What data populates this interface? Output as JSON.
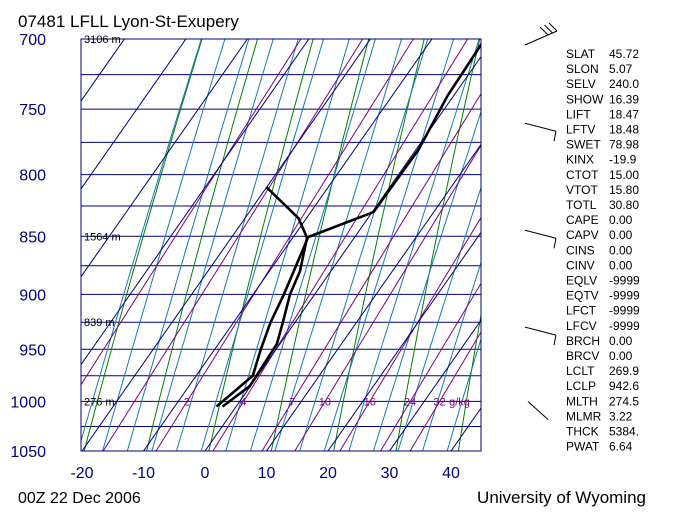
{
  "chart_data": {
    "type": "line",
    "title": "07481 LFLL Lyon-St-Exupery",
    "footer_left": "00Z 22 Dec 2006",
    "footer_right": "University of Wyoming",
    "xlim": [
      -20,
      45
    ],
    "x_ticks": [
      "-20",
      "-10",
      "0",
      "10",
      "20",
      "30",
      "40"
    ],
    "p_levels": [
      "700",
      "750",
      "800",
      "850",
      "900",
      "950",
      "1000",
      "1050"
    ],
    "height_labels": [
      {
        "p": 700,
        "text": "3106 m"
      },
      {
        "p": 850,
        "text": "1564 m"
      },
      {
        "p": 925,
        "text": "839 m"
      },
      {
        "p": 1000,
        "text": "276 m"
      }
    ],
    "mixing_ratio_labels": [
      {
        "w": 2,
        "text": "2"
      },
      {
        "w": 4,
        "text": "4"
      },
      {
        "w": 7,
        "text": "7"
      },
      {
        "w": 10,
        "text": "10"
      },
      {
        "w": 16,
        "text": "16"
      },
      {
        "w": 24,
        "text": "24"
      },
      {
        "w": 32,
        "text": "32"
      },
      {
        "w": 32,
        "text": "g/kg"
      }
    ],
    "series": [
      {
        "role": "temperature",
        "points": [
          {
            "p": 1005,
            "t": -2.2
          },
          {
            "p": 985,
            "t": -0.1
          },
          {
            "p": 975,
            "t": -0.2
          },
          {
            "p": 945,
            "t": -0.5
          },
          {
            "p": 925,
            "t": -2.0
          },
          {
            "p": 900,
            "t": -4.0
          },
          {
            "p": 880,
            "t": -5.0
          },
          {
            "p": 851,
            "t": -7.7
          },
          {
            "p": 830,
            "t": 0.2
          },
          {
            "p": 780,
            "t": 0.4
          },
          {
            "p": 740,
            "t": -1.0
          },
          {
            "p": 700,
            "t": -1.4
          }
        ]
      },
      {
        "role": "dewpoint",
        "points": [
          {
            "p": 1005,
            "t": -3.2
          },
          {
            "p": 990,
            "t": -2.0
          },
          {
            "p": 975,
            "t": -0.8
          },
          {
            "p": 950,
            "t": -2.5
          },
          {
            "p": 925,
            "t": -4.0
          },
          {
            "p": 900,
            "t": -5.0
          },
          {
            "p": 852,
            "t": -7.5
          },
          {
            "p": 835,
            "t": -11.3
          },
          {
            "p": 810,
            "t": -20.0
          }
        ]
      }
    ],
    "wind_barbs_at": [
      700,
      765,
      850,
      935,
      1010
    ],
    "indices": [
      {
        "k": "SLAT",
        "v": "45.72"
      },
      {
        "k": "SLON",
        "v": "5.07"
      },
      {
        "k": "SELV",
        "v": "240.0"
      },
      {
        "k": "SHOW",
        "v": "16.39"
      },
      {
        "k": "LIFT",
        "v": "18.47"
      },
      {
        "k": "LFTV",
        "v": "18.48"
      },
      {
        "k": "SWET",
        "v": "78.98"
      },
      {
        "k": "KINX",
        "v": "-19.9"
      },
      {
        "k": "CTOT",
        "v": "15.00"
      },
      {
        "k": "VTOT",
        "v": "15.80"
      },
      {
        "k": "TOTL",
        "v": "30.80"
      },
      {
        "k": "CAPE",
        "v": "0.00"
      },
      {
        "k": "CAPV",
        "v": "0.00"
      },
      {
        "k": "CINS",
        "v": "0.00"
      },
      {
        "k": "CINV",
        "v": "0.00"
      },
      {
        "k": "EQLV",
        "v": "-9999"
      },
      {
        "k": "EQTV",
        "v": "-9999"
      },
      {
        "k": "LFCT",
        "v": "-9999"
      },
      {
        "k": "LFCV",
        "v": "-9999"
      },
      {
        "k": "BRCH",
        "v": "0.00"
      },
      {
        "k": "BRCV",
        "v": "0.00"
      },
      {
        "k": "LCLT",
        "v": "269.9"
      },
      {
        "k": "LCLP",
        "v": "942.6"
      },
      {
        "k": "MLTH",
        "v": "274.5"
      },
      {
        "k": "MLMR",
        "v": "3.22"
      },
      {
        "k": "THCK",
        "v": "5384."
      },
      {
        "k": "PWAT",
        "v": "6.64"
      }
    ],
    "colors": {
      "frame": "#000080",
      "isotherm": "#000080",
      "dry_adiabat": "#008000",
      "moist_adiabat": "#1a78b4",
      "mixing_ratio": "#800080",
      "profile": "#000000",
      "axis_text": "#000080"
    }
  }
}
